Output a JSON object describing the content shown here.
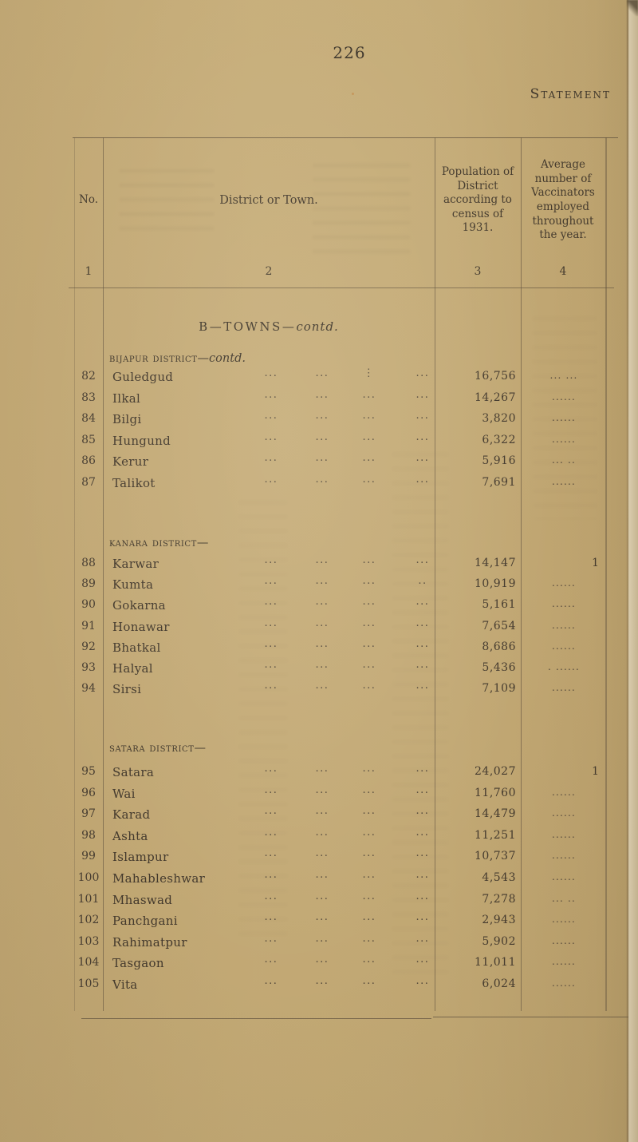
{
  "page": {
    "number": "226",
    "corner_title": "Statement"
  },
  "table": {
    "headers": {
      "col1": "No.",
      "col2": "District or Town.",
      "col3": "Population of District according to census of 1931.",
      "col4": "Average number of Vaccinators employed throughout the year."
    },
    "column_numbers": [
      "1",
      "2",
      "3",
      "4"
    ],
    "section_title": {
      "main": "B—TOWNS—",
      "contd": "contd."
    },
    "groups": [
      {
        "heading": {
          "smallcaps": "Bijapur District",
          "dash": "—",
          "contd": "contd."
        },
        "rows": [
          {
            "no": "82",
            "name": "Guledgud",
            "leaders": [
              "...",
              "...",
              "⋮",
              "..."
            ],
            "population": "16,756",
            "vaccinators": "... ..."
          },
          {
            "no": "83",
            "name": "Ilkal",
            "leaders": [
              "...",
              "...",
              "...",
              "..."
            ],
            "population": "14,267",
            "vaccinators": "......"
          },
          {
            "no": "84",
            "name": "Bilgi",
            "leaders": [
              "...",
              "...",
              "...",
              "..."
            ],
            "population": "3,820",
            "vaccinators": "......"
          },
          {
            "no": "85",
            "name": "Hungund",
            "leaders": [
              "...",
              "...",
              "...",
              "..."
            ],
            "population": "6,322",
            "vaccinators": "......"
          },
          {
            "no": "86",
            "name": "Kerur",
            "leaders": [
              "...",
              "...",
              "...",
              "..."
            ],
            "population": "5,916",
            "vaccinators": "... .."
          },
          {
            "no": "87",
            "name": "Talikot",
            "leaders": [
              "...",
              "...",
              "...",
              "..."
            ],
            "population": "7,691",
            "vaccinators": "......"
          }
        ]
      },
      {
        "heading": {
          "smallcaps": "Kanara District",
          "dash": "—",
          "contd": ""
        },
        "rows": [
          {
            "no": "88",
            "name": "Karwar",
            "leaders": [
              "...",
              "...",
              "...",
              "..."
            ],
            "population": "14,147",
            "vaccinators": "1"
          },
          {
            "no": "89",
            "name": "Kumta",
            "leaders": [
              "...",
              "...",
              "...",
              ".."
            ],
            "population": "10,919",
            "vaccinators": "......"
          },
          {
            "no": "90",
            "name": "Gokarna",
            "leaders": [
              "...",
              "...",
              "...",
              "..."
            ],
            "population": "5,161",
            "vaccinators": "......"
          },
          {
            "no": "91",
            "name": "Honawar",
            "leaders": [
              "...",
              "...",
              "...",
              "..."
            ],
            "population": "7,654",
            "vaccinators": "......"
          },
          {
            "no": "92",
            "name": "Bhatkal",
            "leaders": [
              "...",
              "...",
              "...",
              "..."
            ],
            "population": "8,686",
            "vaccinators": "......"
          },
          {
            "no": "93",
            "name": "Halyal",
            "leaders": [
              "...",
              "...",
              "...",
              "..."
            ],
            "population": "5,436",
            "vaccinators": ". ......"
          },
          {
            "no": "94",
            "name": "Sirsi",
            "leaders": [
              "...",
              "...",
              "...",
              "..."
            ],
            "population": "7,109",
            "vaccinators": "......"
          }
        ]
      },
      {
        "heading": {
          "smallcaps": "Satara District",
          "dash": "—",
          "contd": ""
        },
        "rows": [
          {
            "no": "95",
            "name": "Satara",
            "leaders": [
              "...",
              "...",
              "...",
              "..."
            ],
            "population": "24,027",
            "vaccinators": "1"
          },
          {
            "no": "96",
            "name": "Wai",
            "leaders": [
              "...",
              "...",
              "...",
              "..."
            ],
            "population": "11,760",
            "vaccinators": "......"
          },
          {
            "no": "97",
            "name": "Karad",
            "leaders": [
              "...",
              "...",
              "...",
              "..."
            ],
            "population": "14,479",
            "vaccinators": "......"
          },
          {
            "no": "98",
            "name": "Ashta",
            "leaders": [
              "...",
              "...",
              "...",
              "..."
            ],
            "population": "11,251",
            "vaccinators": "......"
          },
          {
            "no": "99",
            "name": "Islampur",
            "leaders": [
              "...",
              "...",
              "...",
              "..."
            ],
            "population": "10,737",
            "vaccinators": "......"
          },
          {
            "no": "100",
            "name": "Mahableshwar",
            "leaders": [
              "...",
              "...",
              "...",
              "..."
            ],
            "population": "4,543",
            "vaccinators": "......"
          },
          {
            "no": "101",
            "name": "Mhaswad",
            "leaders": [
              "...",
              "...",
              "...",
              "..."
            ],
            "population": "7,278",
            "vaccinators": "... .."
          },
          {
            "no": "102",
            "name": "Panchgani",
            "leaders": [
              "...",
              "...",
              "...",
              "..."
            ],
            "population": "2,943",
            "vaccinators": "......"
          },
          {
            "no": "103",
            "name": "Rahimatpur",
            "leaders": [
              "...",
              "...",
              "...",
              "..."
            ],
            "population": "5,902",
            "vaccinators": "......"
          },
          {
            "no": "104",
            "name": "Tasgaon",
            "leaders": [
              "...",
              "...",
              "...",
              "..."
            ],
            "population": "11,011",
            "vaccinators": "......"
          },
          {
            "no": "105",
            "name": "Vita",
            "leaders": [
              "...",
              "...",
              "...",
              "..."
            ],
            "population": "6,024",
            "vaccinators": "......"
          }
        ]
      }
    ]
  },
  "colors": {
    "paper": "#e9dec5",
    "ink": "#42382c",
    "rule": "#5c4d3b"
  }
}
